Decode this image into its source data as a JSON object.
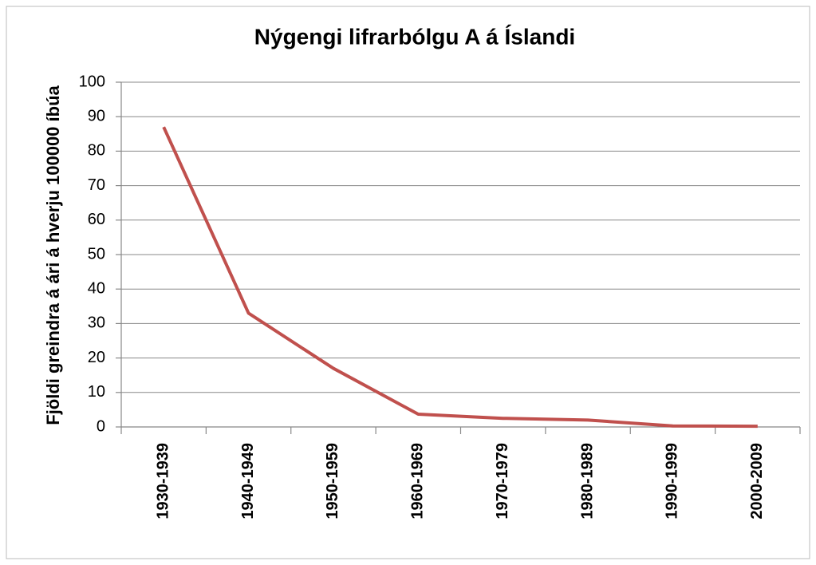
{
  "chart_data": {
    "type": "line",
    "title": "Nýgengi lifrarbólgu A á Íslandi",
    "y_label": "Fjöldi greindra á ári á hverju 100000 íbúa",
    "categories": [
      "1930-1939",
      "1940-1949",
      "1950-1959",
      "1960-1969",
      "1970-1979",
      "1980-1989",
      "1990-1999",
      "2000-2009"
    ],
    "values": [
      87,
      33,
      17,
      3.7,
      2.5,
      2,
      0.3,
      0.2
    ],
    "color": "#c0504d",
    "ylim": [
      0,
      100
    ],
    "yticks": [
      0,
      10,
      20,
      30,
      40,
      50,
      60,
      70,
      80,
      90,
      100
    ],
    "grid": true
  }
}
